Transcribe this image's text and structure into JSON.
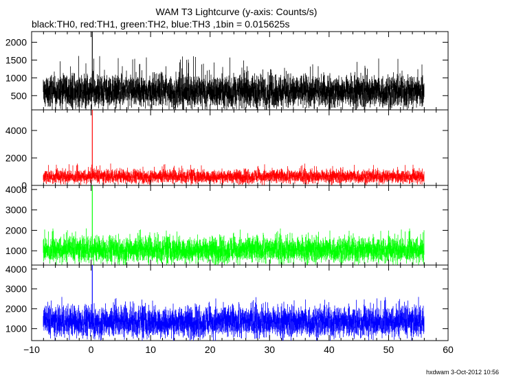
{
  "title": "WAM T3 Lightcurve (y-axis: Counts/s)",
  "subtitle": "black:TH0, red:TH1, green:TH2, blue:TH3 ,1bin = 0.015625s",
  "footer": "hxdwam  3-Oct-2012 10:56",
  "chart_data": {
    "type": "line",
    "x_range": [
      -10,
      60
    ],
    "x_ticks": [
      -10,
      0,
      10,
      20,
      30,
      40,
      50,
      60
    ],
    "x_tick_labels": [
      "−10",
      "0",
      "10",
      "20",
      "30",
      "40",
      "50",
      "60"
    ],
    "data_x_range": [
      -8,
      56
    ],
    "bin_size_s": 0.015625,
    "grid": false,
    "panels": [
      {
        "name": "TH0",
        "color": "#000000",
        "ylim": [
          100,
          2300
        ],
        "y_ticks": [
          500,
          1000,
          1500,
          2000
        ],
        "y_tick_labels": [
          "500",
          "1000",
          "1500",
          "2000"
        ],
        "typical_range": [
          300,
          950
        ],
        "mean": 620,
        "max_excursion": 1650,
        "spike": {
          "x": 0.2,
          "y": 2300
        }
      },
      {
        "name": "TH1",
        "color": "#ff0000",
        "ylim": [
          0,
          5500
        ],
        "y_ticks": [
          0,
          2000,
          4000
        ],
        "y_tick_labels": [
          "0",
          "2000",
          "4000"
        ],
        "typical_range": [
          300,
          1000
        ],
        "mean": 650,
        "max_excursion": 1600,
        "spike": {
          "x": 0.2,
          "y": 5500
        }
      },
      {
        "name": "TH2",
        "color": "#00ff00",
        "ylim": [
          300,
          4200
        ],
        "y_ticks": [
          1000,
          2000,
          3000,
          4000
        ],
        "y_tick_labels": [
          "1000",
          "2000",
          "3000",
          "4000"
        ],
        "typical_range": [
          700,
          1600
        ],
        "mean": 1050,
        "max_excursion": 2100,
        "spike": {
          "x": 0.2,
          "y": 4200
        }
      },
      {
        "name": "TH3",
        "color": "#0000ff",
        "ylim": [
          400,
          4200
        ],
        "y_ticks": [
          1000,
          2000,
          3000,
          4000
        ],
        "y_tick_labels": [
          "1000",
          "2000",
          "3000",
          "4000"
        ],
        "typical_range": [
          900,
          2000
        ],
        "mean": 1350,
        "max_excursion": 2600,
        "spike": {
          "x": 0.2,
          "y": 4200
        }
      }
    ]
  }
}
